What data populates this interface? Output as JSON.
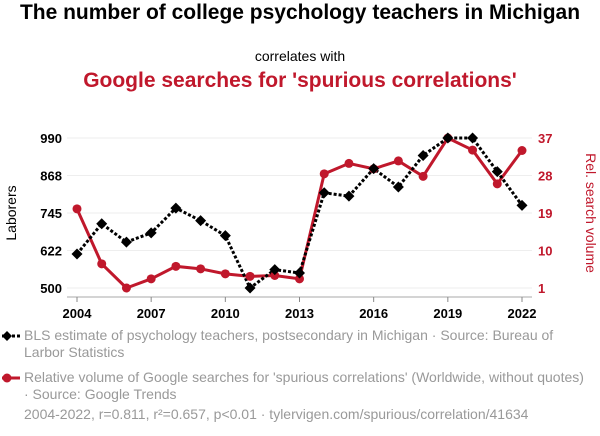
{
  "chart_data": {
    "type": "line",
    "title": "The number of college psychology teachers in Michigan",
    "subtitle": "correlates with",
    "title2": "Google searches for 'spurious correlations'",
    "ylabel": "Laborers",
    "y2label": "Rel. search volume",
    "x": [
      2004,
      2005,
      2006,
      2007,
      2008,
      2009,
      2010,
      2011,
      2012,
      2013,
      2014,
      2015,
      2016,
      2017,
      2018,
      2019,
      2020,
      2021,
      2022
    ],
    "xticks": [
      "2004",
      "2007",
      "2010",
      "2013",
      "2016",
      "2019",
      "2022"
    ],
    "yticks": [
      "500",
      "622",
      "745",
      "868",
      "990"
    ],
    "y2ticks": [
      "1",
      "10",
      "19",
      "28",
      "37"
    ],
    "ylim": [
      500,
      990
    ],
    "y2lim": [
      1,
      37
    ],
    "series": [
      {
        "name": "BLS estimate of psychology teachers, postsecondary in Michigan · Source: Bureau of Larbor Statistics",
        "axis": "left",
        "color": "#000000",
        "values": [
          611,
          710,
          650,
          680,
          761,
          720,
          671,
          500,
          560,
          549,
          811,
          800,
          890,
          830,
          933,
          990,
          990,
          880,
          770
        ]
      },
      {
        "name": "Relative volume of Google searches for 'spurious correlations' (Worldwide, without quotes) · Source: Google Trends",
        "axis": "right",
        "color": "#c0182c",
        "values": [
          20,
          6.8,
          1,
          3.2,
          6.2,
          5.6,
          4.4,
          3.8,
          4,
          3.2,
          28.4,
          30.9,
          29.6,
          31.5,
          27.8,
          37,
          34.1,
          26,
          34
        ]
      }
    ],
    "footer": "2004-2022, r=0.811, r²=0.657, p<0.01 · tylervigen.com/spurious/correlation/41634"
  }
}
